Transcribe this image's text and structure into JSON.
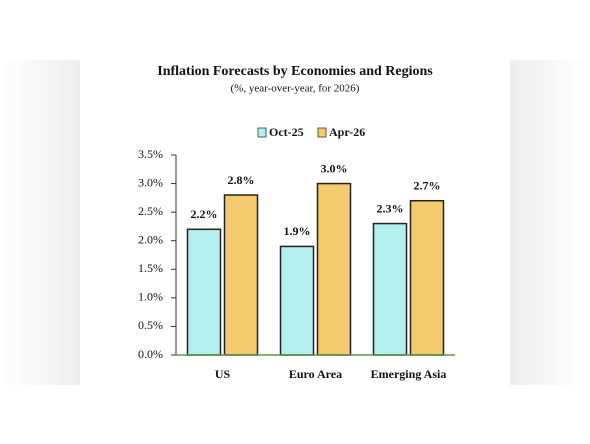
{
  "chart_data": {
    "type": "bar",
    "title": "Inflation Forecasts by Economies and Regions",
    "subtitle": "(%, year-over-year, for 2026)",
    "categories": [
      "US",
      "Euro Area",
      "Emerging Asia"
    ],
    "series": [
      {
        "name": "Oct-25",
        "color": "#b3eef0",
        "values": [
          2.2,
          1.9,
          2.3
        ],
        "value_labels": [
          "2.2%",
          "1.9%",
          "2.3%"
        ]
      },
      {
        "name": "Apr-26",
        "color": "#f3ca6c",
        "values": [
          2.8,
          3.0,
          2.7
        ],
        "value_labels": [
          "2.8%",
          "3.0%",
          "2.7%"
        ]
      }
    ],
    "ylim": [
      0,
      3.5
    ],
    "yticks": [
      {
        "value": 0,
        "label": "0.0%"
      },
      {
        "value": 0.5,
        "label": "0.5%"
      },
      {
        "value": 1,
        "label": "1.0%"
      },
      {
        "value": 1.5,
        "label": "1.5%"
      },
      {
        "value": 2,
        "label": "2.0%"
      },
      {
        "value": 2.5,
        "label": "2.5%"
      },
      {
        "value": 3,
        "label": "3.0%"
      },
      {
        "value": 3.5,
        "label": "3.5%"
      }
    ],
    "legend": "top"
  }
}
